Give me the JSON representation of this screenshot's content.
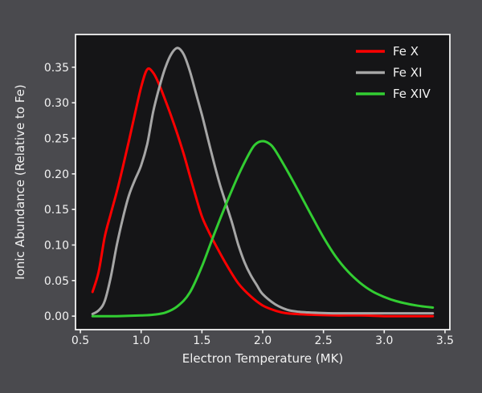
{
  "figure": {
    "background": "#4a4a4e",
    "plot_background": "#151517",
    "axis_color": "#f2f2f2",
    "text_color": "#f2f2f2"
  },
  "chart_data": {
    "type": "line",
    "title": "",
    "xlabel": "Electron Temperature (MK)",
    "ylabel": "Ionic Abundance (Relative to Fe)",
    "xlim": [
      0.46,
      3.54
    ],
    "ylim": [
      -0.019,
      0.396
    ],
    "xticks": [
      "0.5",
      "1.0",
      "1.5",
      "2.0",
      "2.5",
      "3.0",
      "3.5"
    ],
    "yticks": [
      "0.00",
      "0.05",
      "0.10",
      "0.15",
      "0.20",
      "0.25",
      "0.30",
      "0.35"
    ],
    "grid": false,
    "legend_position": "upper right",
    "series": [
      {
        "name": "Fe X",
        "color": "#ff0000",
        "peak": {
          "x": 1.05,
          "y": 0.347
        },
        "points": [
          [
            0.6,
            0.034
          ],
          [
            0.65,
            0.062
          ],
          [
            0.7,
            0.111
          ],
          [
            0.75,
            0.144
          ],
          [
            0.8,
            0.175
          ],
          [
            0.85,
            0.21
          ],
          [
            0.9,
            0.247
          ],
          [
            0.95,
            0.285
          ],
          [
            1.0,
            0.322
          ],
          [
            1.05,
            0.347
          ],
          [
            1.1,
            0.342
          ],
          [
            1.15,
            0.325
          ],
          [
            1.2,
            0.303
          ],
          [
            1.25,
            0.28
          ],
          [
            1.3,
            0.255
          ],
          [
            1.35,
            0.228
          ],
          [
            1.4,
            0.198
          ],
          [
            1.45,
            0.168
          ],
          [
            1.5,
            0.14
          ],
          [
            1.55,
            0.121
          ],
          [
            1.6,
            0.104
          ],
          [
            1.7,
            0.073
          ],
          [
            1.8,
            0.046
          ],
          [
            1.9,
            0.028
          ],
          [
            2.0,
            0.015
          ],
          [
            2.1,
            0.008
          ],
          [
            2.2,
            0.004
          ],
          [
            2.4,
            0.002
          ],
          [
            2.6,
            0.001
          ],
          [
            2.8,
            0.001
          ],
          [
            3.0,
            0.0
          ],
          [
            3.2,
            0.0
          ],
          [
            3.4,
            0.0
          ]
        ]
      },
      {
        "name": "Fe XI",
        "color": "#a6a6a6",
        "peak": {
          "x": 1.3,
          "y": 0.377
        },
        "points": [
          [
            0.6,
            0.003
          ],
          [
            0.65,
            0.008
          ],
          [
            0.7,
            0.021
          ],
          [
            0.75,
            0.055
          ],
          [
            0.8,
            0.1
          ],
          [
            0.85,
            0.138
          ],
          [
            0.9,
            0.17
          ],
          [
            0.95,
            0.192
          ],
          [
            1.0,
            0.212
          ],
          [
            1.05,
            0.242
          ],
          [
            1.1,
            0.288
          ],
          [
            1.15,
            0.322
          ],
          [
            1.2,
            0.35
          ],
          [
            1.25,
            0.369
          ],
          [
            1.3,
            0.377
          ],
          [
            1.35,
            0.368
          ],
          [
            1.4,
            0.345
          ],
          [
            1.45,
            0.314
          ],
          [
            1.5,
            0.283
          ],
          [
            1.55,
            0.249
          ],
          [
            1.6,
            0.215
          ],
          [
            1.65,
            0.184
          ],
          [
            1.7,
            0.157
          ],
          [
            1.75,
            0.13
          ],
          [
            1.8,
            0.1
          ],
          [
            1.85,
            0.076
          ],
          [
            1.9,
            0.058
          ],
          [
            1.95,
            0.044
          ],
          [
            2.0,
            0.031
          ],
          [
            2.1,
            0.017
          ],
          [
            2.2,
            0.009
          ],
          [
            2.3,
            0.006
          ],
          [
            2.4,
            0.005
          ],
          [
            2.6,
            0.004
          ],
          [
            2.8,
            0.004
          ],
          [
            3.0,
            0.004
          ],
          [
            3.2,
            0.004
          ],
          [
            3.4,
            0.004
          ]
        ]
      },
      {
        "name": "Fe XIV",
        "color": "#32cd32",
        "peak": {
          "x": 2.0,
          "y": 0.246
        },
        "points": [
          [
            0.6,
            0.0
          ],
          [
            0.8,
            0.0
          ],
          [
            1.0,
            0.001
          ],
          [
            1.1,
            0.002
          ],
          [
            1.2,
            0.005
          ],
          [
            1.3,
            0.014
          ],
          [
            1.4,
            0.033
          ],
          [
            1.5,
            0.07
          ],
          [
            1.6,
            0.115
          ],
          [
            1.7,
            0.158
          ],
          [
            1.8,
            0.198
          ],
          [
            1.9,
            0.232
          ],
          [
            1.95,
            0.243
          ],
          [
            2.0,
            0.246
          ],
          [
            2.05,
            0.243
          ],
          [
            2.1,
            0.234
          ],
          [
            2.2,
            0.205
          ],
          [
            2.3,
            0.174
          ],
          [
            2.4,
            0.142
          ],
          [
            2.5,
            0.111
          ],
          [
            2.6,
            0.084
          ],
          [
            2.7,
            0.063
          ],
          [
            2.8,
            0.047
          ],
          [
            2.9,
            0.035
          ],
          [
            3.0,
            0.027
          ],
          [
            3.1,
            0.021
          ],
          [
            3.2,
            0.017
          ],
          [
            3.3,
            0.014
          ],
          [
            3.4,
            0.012
          ]
        ]
      }
    ]
  }
}
